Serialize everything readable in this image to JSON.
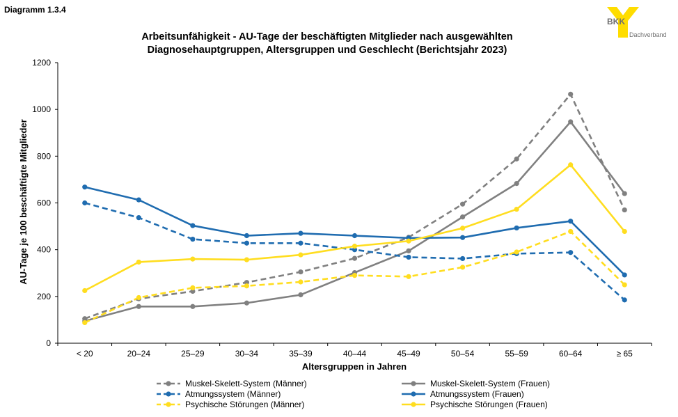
{
  "header": {
    "diagram_label": "Diagramm 1.3.4"
  },
  "logo": {
    "name": "BKK",
    "subtitle": "Dachverband"
  },
  "colors": {
    "gray": "#808080",
    "blue": "#1F6CB0",
    "yellow": "#FFDD1F",
    "logo_yellow": "#FFDD00",
    "logo_text": "#6E6E6E"
  },
  "chart_data": {
    "type": "line",
    "title_lines": [
      "Arbeitsunfähigkeit - AU-Tage der beschäftigten Mitglieder nach ausgewählten",
      "Diagnosehauptgruppen, Altersgruppen und Geschlecht (Berichtsjahr 2023)"
    ],
    "xlabel": "Altersgruppen in Jahren",
    "ylabel": "AU-Tage je 100 beschäftigte Mitglieder",
    "categories": [
      "< 20",
      "20–24",
      "25–29",
      "30–34",
      "35–39",
      "40–44",
      "45–49",
      "50–54",
      "55–59",
      "60–64",
      "≥ 65"
    ],
    "ylim": [
      0,
      1200
    ],
    "yticks": [
      0,
      200,
      400,
      600,
      800,
      1000,
      1200
    ],
    "grid": false,
    "legend_position": "bottom",
    "series": [
      {
        "name": "Muskel-Skelett-System (Männer)",
        "color": "gray",
        "dashed": true,
        "values": [
          105,
          190,
          222,
          260,
          305,
          363,
          453,
          595,
          788,
          1065,
          570
        ]
      },
      {
        "name": "Muskel-Skelett-System (Frauen)",
        "color": "gray",
        "dashed": false,
        "values": [
          95,
          157,
          157,
          172,
          207,
          302,
          395,
          540,
          683,
          947,
          640
        ]
      },
      {
        "name": "Atmungssystem (Männer)",
        "color": "blue",
        "dashed": true,
        "values": [
          600,
          537,
          445,
          428,
          428,
          400,
          368,
          362,
          383,
          388,
          185
        ]
      },
      {
        "name": "Atmungssystem (Frauen)",
        "color": "blue",
        "dashed": false,
        "values": [
          668,
          613,
          503,
          460,
          470,
          460,
          450,
          452,
          493,
          522,
          292
        ]
      },
      {
        "name": "Psychische Störungen (Männer)",
        "color": "yellow",
        "dashed": true,
        "values": [
          88,
          195,
          237,
          245,
          262,
          290,
          285,
          325,
          390,
          478,
          250
        ]
      },
      {
        "name": "Psychische Störungen (Frauen)",
        "color": "yellow",
        "dashed": false,
        "values": [
          225,
          347,
          360,
          357,
          378,
          415,
          437,
          492,
          573,
          763,
          478
        ]
      }
    ]
  }
}
